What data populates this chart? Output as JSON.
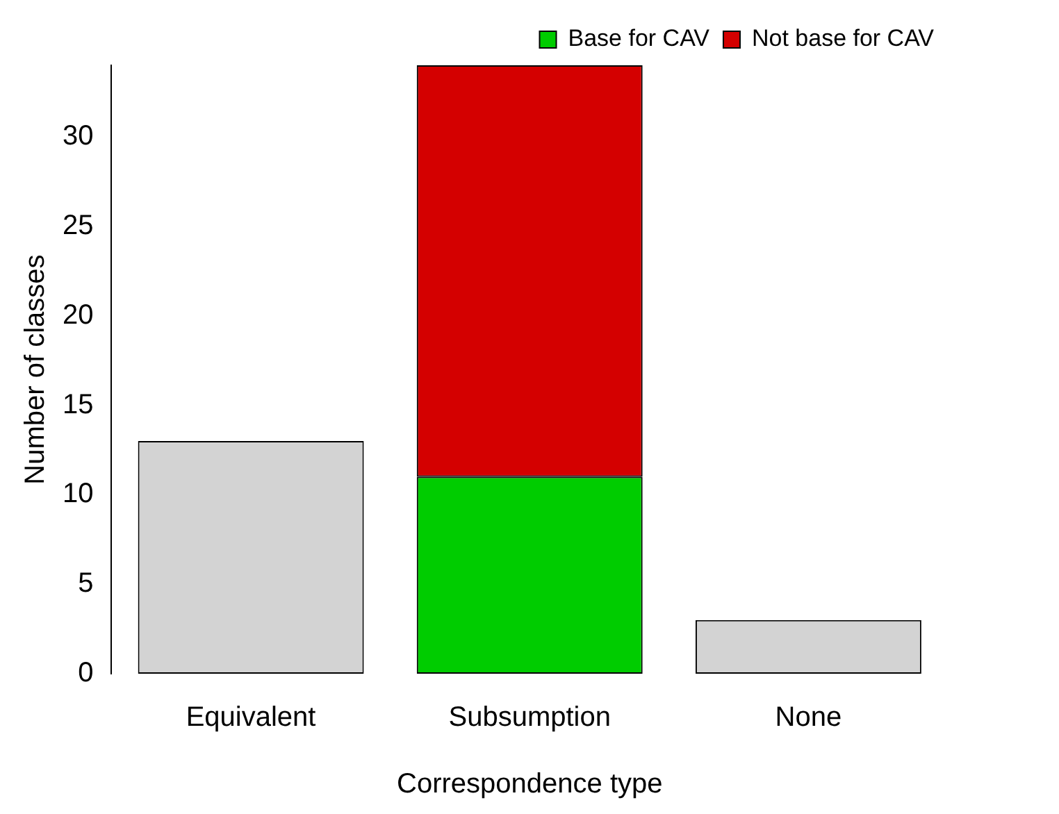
{
  "chart_data": {
    "type": "bar",
    "xlabel": "Correspondence type",
    "ylabel": "Number of classes",
    "categories": [
      "Equivalent",
      "Subsumption",
      "None"
    ],
    "stacked": true,
    "series": [
      {
        "color": "#d3d3d3",
        "values": [
          13,
          null,
          3
        ]
      },
      {
        "name": "Base for CAV",
        "color": "#00cc00",
        "values": [
          null,
          11,
          null
        ]
      },
      {
        "name": "Not base for CAV",
        "color": "#d40000",
        "values": [
          null,
          23,
          null
        ]
      }
    ],
    "ylim": [
      0,
      34
    ],
    "yticks": [
      0,
      5,
      10,
      15,
      20,
      25,
      30
    ],
    "grid": false,
    "legend": "top right"
  }
}
